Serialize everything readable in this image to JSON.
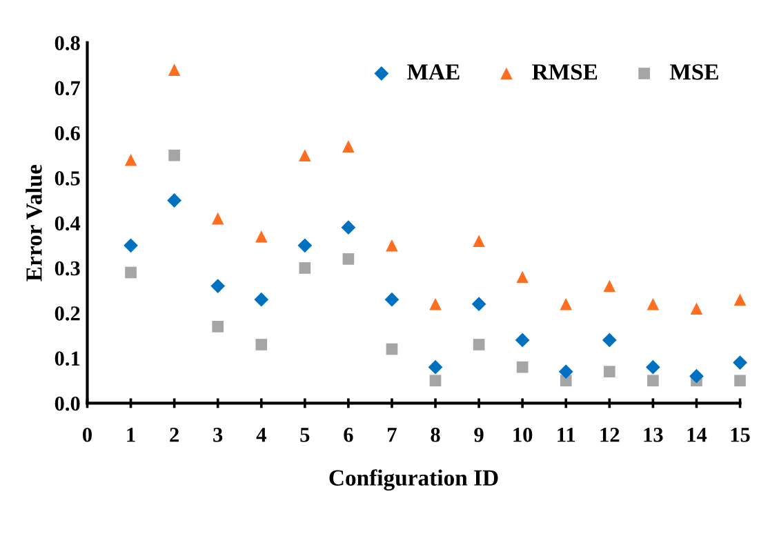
{
  "chart_data": {
    "type": "scatter",
    "xlabel": "Configuration ID",
    "ylabel": "Error Value",
    "x": [
      1,
      2,
      3,
      4,
      5,
      6,
      7,
      8,
      9,
      10,
      11,
      12,
      13,
      14,
      15
    ],
    "series": [
      {
        "name": "MAE",
        "color": "#0070c0",
        "marker": "diamond",
        "values": [
          0.35,
          0.45,
          0.26,
          0.23,
          0.35,
          0.39,
          0.23,
          0.08,
          0.22,
          0.14,
          0.07,
          0.14,
          0.08,
          0.06,
          0.09
        ]
      },
      {
        "name": "RMSE",
        "color": "#ff6d1f",
        "marker": "triangle",
        "values": [
          0.54,
          0.74,
          0.41,
          0.37,
          0.55,
          0.57,
          0.35,
          0.22,
          0.36,
          0.28,
          0.22,
          0.26,
          0.22,
          0.21,
          0.23
        ]
      },
      {
        "name": "MSE",
        "color": "#a5a5a5",
        "marker": "square",
        "values": [
          0.29,
          0.55,
          0.17,
          0.13,
          0.3,
          0.32,
          0.12,
          0.05,
          0.13,
          0.08,
          0.05,
          0.07,
          0.05,
          0.05,
          0.05
        ]
      }
    ],
    "xlim": [
      0,
      15
    ],
    "xticks": [
      0,
      1,
      2,
      3,
      4,
      5,
      6,
      7,
      8,
      9,
      10,
      11,
      12,
      13,
      14,
      15
    ],
    "ylim": [
      0,
      0.8
    ],
    "yticks": [
      {
        "value": 0,
        "label": "0.0"
      },
      {
        "value": 0.1,
        "label": "0.1"
      },
      {
        "value": 0.2,
        "label": "0.2"
      },
      {
        "value": 0.3,
        "label": "0.3"
      },
      {
        "value": 0.4,
        "label": "0.4"
      },
      {
        "value": 0.5,
        "label": "0.5"
      },
      {
        "value": 0.6,
        "label": "0.6"
      },
      {
        "value": 0.7,
        "label": "0.7"
      },
      {
        "value": 0.8,
        "label": "0.8"
      }
    ],
    "grid": false,
    "legend": "top right"
  }
}
